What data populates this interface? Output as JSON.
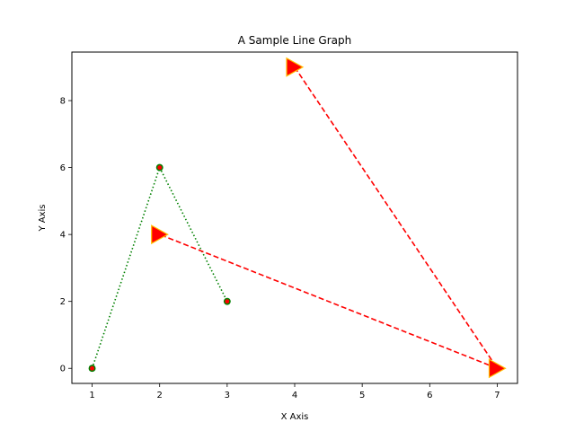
{
  "chart_data": {
    "type": "line",
    "title": "A Sample Line Graph",
    "xlabel": "X Axis",
    "ylabel": "Y Axis",
    "xlim": [
      0.7,
      7.3
    ],
    "ylim": [
      -0.45,
      9.45
    ],
    "xticks": [
      1,
      2,
      3,
      4,
      5,
      6,
      7
    ],
    "yticks": [
      0,
      2,
      4,
      6,
      8
    ],
    "grid": false,
    "series": [
      {
        "x": [
          1,
          2,
          3
        ],
        "y": [
          0,
          6,
          2
        ],
        "line_style": "dotted",
        "line_color": "#008000",
        "marker": "circle",
        "marker_face_color": "#ff0000",
        "marker_edge_color": "#008000"
      },
      {
        "x": [
          4,
          7,
          2
        ],
        "y": [
          9,
          0,
          4
        ],
        "line_style": "dashed",
        "line_color": "#ff0000",
        "marker": "triangle-right",
        "marker_face_color": "#ff0000",
        "marker_edge_color": "#ffbf00"
      }
    ]
  }
}
